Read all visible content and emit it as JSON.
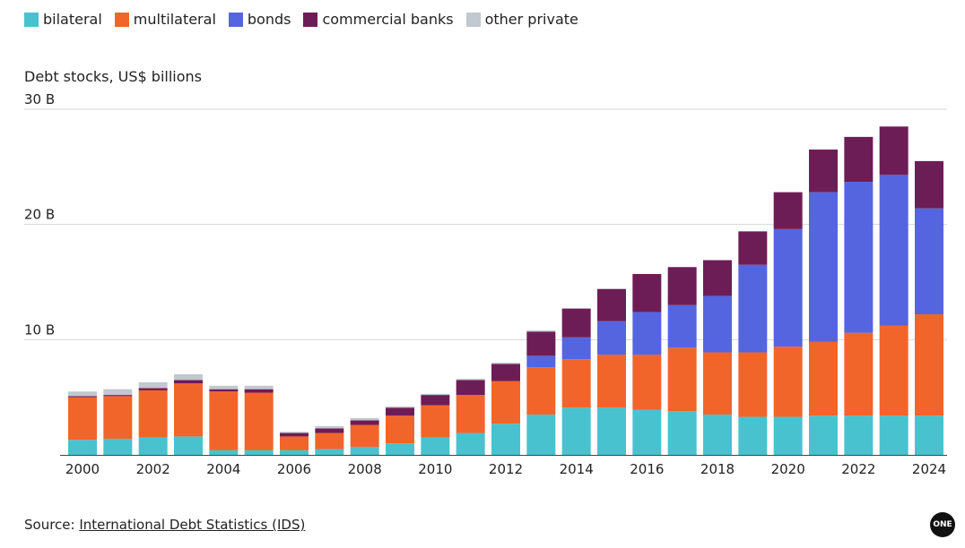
{
  "legend": [
    {
      "label": "bilateral",
      "color": "#49c2cf"
    },
    {
      "label": "multilateral",
      "color": "#f2652a"
    },
    {
      "label": "bonds",
      "color": "#5565e0"
    },
    {
      "label": "commercial banks",
      "color": "#6d1d56"
    },
    {
      "label": "other private",
      "color": "#c1c8cf"
    }
  ],
  "source": {
    "prefix": "Source: ",
    "link_text": "International Debt Statistics (IDS)"
  },
  "logo": "ONE",
  "chart_data": {
    "type": "bar",
    "stacked": true,
    "ylabel": "Debt stocks, US$ billions",
    "ylim": [
      0,
      30
    ],
    "y_ticks": [
      {
        "value": 10,
        "label": "10 B"
      },
      {
        "value": 20,
        "label": "20 B"
      },
      {
        "value": 30,
        "label": "30 B"
      }
    ],
    "grid": true,
    "categories": [
      "2000",
      "2001",
      "2002",
      "2003",
      "2004",
      "2005",
      "2006",
      "2007",
      "2008",
      "2009",
      "2010",
      "2011",
      "2012",
      "2013",
      "2014",
      "2015",
      "2016",
      "2017",
      "2018",
      "2019",
      "2020",
      "2021",
      "2022",
      "2023",
      "2024"
    ],
    "x_tick_labels": [
      "2000",
      "2002",
      "2004",
      "2006",
      "2008",
      "2010",
      "2012",
      "2014",
      "2016",
      "2018",
      "2020",
      "2022",
      "2024"
    ],
    "series": [
      {
        "name": "bilateral",
        "color": "#49c2cf",
        "values": [
          1.3,
          1.4,
          1.5,
          1.6,
          0.4,
          0.4,
          0.4,
          0.5,
          0.7,
          1.0,
          1.5,
          1.9,
          2.7,
          3.5,
          4.1,
          4.1,
          3.9,
          3.8,
          3.5,
          3.3,
          3.3,
          3.4,
          3.4,
          3.4,
          3.4
        ]
      },
      {
        "name": "multilateral",
        "color": "#f2652a",
        "values": [
          3.7,
          3.7,
          4.1,
          4.6,
          5.1,
          5.0,
          1.2,
          1.4,
          1.9,
          2.4,
          2.8,
          3.3,
          3.7,
          4.1,
          4.2,
          4.6,
          4.8,
          5.5,
          5.4,
          5.6,
          6.1,
          6.4,
          7.2,
          7.8,
          8.8
        ]
      },
      {
        "name": "bonds",
        "color": "#5565e0",
        "values": [
          0,
          0,
          0,
          0,
          0,
          0,
          0,
          0,
          0,
          0,
          0,
          0,
          0,
          1.0,
          1.9,
          2.9,
          3.7,
          3.7,
          4.9,
          7.6,
          10.2,
          13.0,
          13.1,
          13.1,
          9.2
        ]
      },
      {
        "name": "commercial banks",
        "color": "#6d1d56",
        "values": [
          0.1,
          0.1,
          0.2,
          0.3,
          0.2,
          0.3,
          0.3,
          0.4,
          0.4,
          0.7,
          0.9,
          1.3,
          1.5,
          2.1,
          2.5,
          2.8,
          3.3,
          3.3,
          3.1,
          2.9,
          3.2,
          3.7,
          3.9,
          4.2,
          4.1
        ]
      },
      {
        "name": "other private",
        "color": "#c1c8cf",
        "values": [
          0.4,
          0.5,
          0.5,
          0.5,
          0.3,
          0.3,
          0.1,
          0.2,
          0.2,
          0.1,
          0.1,
          0.1,
          0.1,
          0.1,
          0,
          0,
          0,
          0,
          0,
          0,
          0,
          0,
          0,
          0,
          0
        ]
      }
    ]
  }
}
